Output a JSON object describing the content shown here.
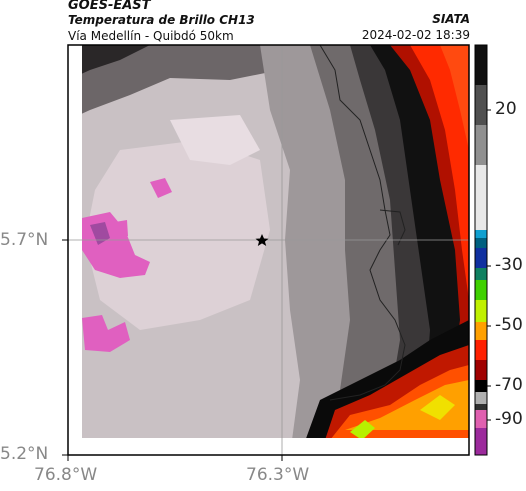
{
  "header": {
    "satellite": "GOES-EAST",
    "product": "Temperatura de Brillo CH13",
    "region": "Vía Medellín - Quibdó 50km",
    "org": "SIATA",
    "datetime": "2024-02-02 18:39"
  },
  "map": {
    "lat_ticks": [
      "5.7°N",
      "5.2°N"
    ],
    "lon_ticks": [
      "76.8°W",
      "76.3°W"
    ],
    "marker": "star",
    "gridlines": true
  },
  "colorbar": {
    "ticks": [
      "20",
      "-30",
      "-50",
      "-70",
      "-90"
    ],
    "colors": [
      "#9c2a9c",
      "#e060b0",
      "#f0f0f0",
      "#ffffff",
      "#303030",
      "#000000",
      "#a00000",
      "#ff2000",
      "#ffa000",
      "#f0f000",
      "#40d000",
      "#1030a0",
      "#10a0d0",
      "#404040",
      "#b0b0b0",
      "#d0d0d0",
      "#707070",
      "#101010"
    ]
  },
  "icons": {
    "location": "star-icon"
  }
}
